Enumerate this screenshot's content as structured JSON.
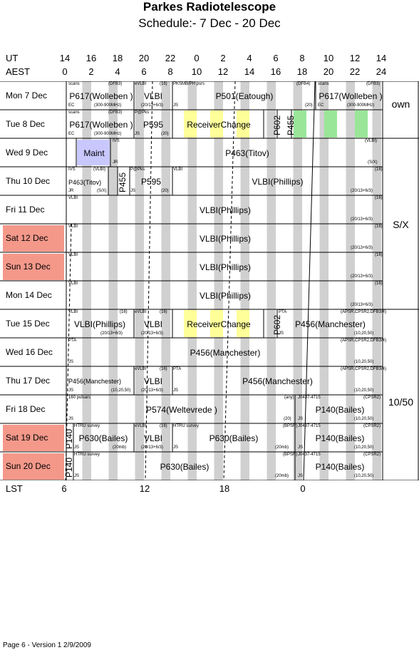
{
  "title": "Parkes Radiotelescope",
  "subtitle": "Schedule:- 7  Dec - 20 Dec",
  "ut_label": "UT",
  "aest_label": "AEST",
  "lst_label": "LST",
  "ut_ticks": [
    "14",
    "16",
    "18",
    "20",
    "22",
    "0",
    "2",
    "4",
    "6",
    "8",
    "10",
    "12",
    "14"
  ],
  "aest_ticks": [
    "0",
    "2",
    "4",
    "6",
    "8",
    "10",
    "12",
    "14",
    "16",
    "18",
    "20",
    "22",
    "24"
  ],
  "lst_ticks": [
    "6",
    "12",
    "18",
    "0"
  ],
  "days": [
    "Mon   7  Dec",
    "Tue   8  Dec",
    "Wed   9  Dec",
    "Thu   10 Dec",
    "Fri    11 Dec",
    "Sat   12 Dec",
    "Sun   13 Dec",
    "Mon  14 Dec",
    "Tue   15 Dec",
    "Wed  16 Dec",
    "Thu   17 Dec",
    "Fri    18 Dec",
    "Sat   19 Dec",
    "Sun   20 Dec"
  ],
  "side_labels": {
    "own": "own",
    "sx": "S/X",
    "ten50": "10/50"
  },
  "colors": {
    "weekend": "#f4988a",
    "stripe": "#d0d0d0",
    "receiver_change": "#ffff99",
    "green": "#99e699",
    "maint": "#c8c8ff"
  },
  "blocks": {
    "r0": {
      "a_name": "P617(Wolleben )",
      "a_tl": "scans",
      "a_tr": "(DFB3)",
      "a_bl": "EC",
      "a_br": "(300-900MHz)",
      "b_name": "VLBI",
      "b_tl": "eVLBI",
      "b_tr": "(16)",
      "b_br": "(20/13+6/3)",
      "c_name": "P501(Eatough)",
      "c_tl": "PKSMB/PH psrs",
      "c_bl": "JS",
      "c_tr": "(DFB4)",
      "c_br": "(20)",
      "d_name": "P617(Wolleben )",
      "d_tl": "scans",
      "d_tr": "(DFB3)",
      "d_bl": "EC",
      "d_br": "(300-900MHz)"
    },
    "r1": {
      "a_name": "P617(Wolleben )",
      "a_tl": "scans",
      "a_tr": "(DFB3)",
      "a_bl": "EC",
      "a_br": "(300-900MHz)",
      "b_name": "P595",
      "b_tl": "P@Pks",
      "b_bl": "JS",
      "b_br": "(20)",
      "c_name": "ReceiverChange",
      "v1": "P602",
      "v2": "P455"
    },
    "r2": {
      "a_name": "Maint",
      "b_name": "P463(Titov)",
      "b_tl": "IVS",
      "b_bl": "JR",
      "b_tr": "(VLBI)",
      "b_br": "(S/X)"
    },
    "r3": {
      "a_name": "P463(Titov)",
      "a_tl": "IVS",
      "a_tr": "(VLBI)",
      "a_bl": "JR",
      "a_br": "(S/X)",
      "v": "P455",
      "b_name": "P595",
      "b_tl": "P@Pks",
      "b_bl": "JS",
      "b_br": "(20)",
      "c_name": "VLBI(Phillips)",
      "c_tl": "VLBI",
      "c_tr": "(16)",
      "c_br": "(20/13+6/3)"
    },
    "vlbi": {
      "name": "VLBI(Phillips)",
      "tl": "VLBI",
      "tr": "(16)",
      "br": "(20/13+6/3)"
    },
    "r8": {
      "a_name": "VLBI(Phillips)",
      "a_tl": "VLBI",
      "a_tr": "(16)",
      "a_br": "(20/13+6/3)",
      "b_name": "VLBI",
      "b_tl": "eVLBI",
      "b_tr": "(16)",
      "b_br": "(20/13+6/3)",
      "c_name": "ReceiverChange",
      "v": "P602",
      "d_name": "P456(Manchester)",
      "d_tl": "PTA",
      "d_tr": "(APSR,CPSR2,DFB3/4)",
      "d_bl": "JS",
      "d_br": "(10,20,50)"
    },
    "r9": {
      "name": "P456(Manchester)",
      "tl": "PTA",
      "tr": "(APSR,CPSR2,DFB3/4)",
      "bl": "JS",
      "br": "(10,20,50)"
    },
    "r10": {
      "a_name": "P456(Manchester)",
      "a_bl": "JS",
      "a_br": "(10,20,50)",
      "b_name": "VLBI",
      "b_tl": "eVLBI",
      "b_tr": "(16)",
      "b_br": "(20/13+6/3)",
      "c_name": "P456(Manchester)",
      "c_tl": "PTA",
      "c_tr": "(APSR,CPSR2,DFB3/4)",
      "c_bl": "JS",
      "c_br": "(10,20,50)"
    },
    "r11": {
      "a_name": "P574(Weltevrede )",
      "a_tl": "160 pulsars",
      "a_bl": "JS",
      "a_tr": "(any)",
      "a_br": "(20)",
      "b_name": "P140(Bailes)",
      "b_tl": "J0437-4715",
      "b_tr": "(CPSR2)",
      "b_bl": "JS",
      "b_br": "(10,20,50)"
    },
    "r12": {
      "v": "P140",
      "a_name": "P630(Bailes)",
      "a_tl": "HTRU survey",
      "a_bl": "JS",
      "a_br": "(20mb)",
      "b_name": "VLBI",
      "b_tl": "eVLBI",
      "b_tr": "(16)",
      "b_br": "(20/13+6/3)",
      "c_name": "P630(Bailes)",
      "c_tl": "HTRU survey",
      "c_tr": "(BPSR)",
      "c_bl": "JS",
      "c_br": "(20mb)",
      "d_name": "P140(Bailes)",
      "d_tl": "J0437-4715",
      "d_tr": "(CPSR2)",
      "d_bl": "JS",
      "d_br": "(10,20,50)"
    },
    "r13": {
      "v": "P140",
      "a_name": "P630(Bailes)",
      "a_tl": "HTRU survey",
      "a_bl": "JS",
      "a_tr": "(BPSR)",
      "a_br": "(20mb)",
      "b_name": "P140(Bailes)",
      "b_tl": "J0437-4715",
      "b_tr": "(CPSR2)",
      "b_bl": "JS",
      "b_br": "(10,20,50)"
    }
  },
  "footer": "Page 6 - Version 1  2/9/2009"
}
